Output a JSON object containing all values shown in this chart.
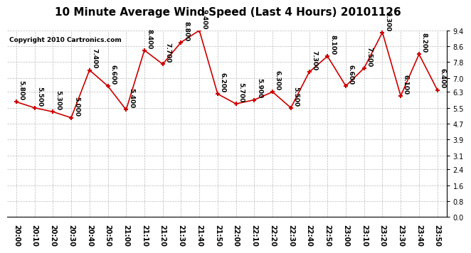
{
  "title": "10 Minute Average Wind Speed (Last 4 Hours) 20101126",
  "copyright": "Copyright 2010 Cartronics.com",
  "x_labels": [
    "20:00",
    "20:10",
    "20:20",
    "20:30",
    "20:40",
    "20:50",
    "21:00",
    "21:10",
    "21:20",
    "21:30",
    "21:40",
    "21:50",
    "22:00",
    "22:10",
    "22:20",
    "22:30",
    "22:40",
    "22:50",
    "23:00",
    "23:10",
    "23:20",
    "23:30",
    "23:40",
    "23:50"
  ],
  "y_values": [
    5.8,
    5.5,
    5.3,
    5.0,
    7.4,
    6.6,
    5.4,
    8.4,
    7.7,
    8.8,
    9.4,
    6.2,
    5.7,
    5.9,
    6.3,
    5.5,
    7.3,
    8.1,
    6.6,
    7.5,
    9.3,
    6.1,
    8.2,
    6.4
  ],
  "y_labels": [
    "5.800",
    "5.500",
    "5.300",
    "5.000",
    "7.400",
    "6.600",
    "5.400",
    "8.400",
    "7.700",
    "8.800",
    "9.400",
    "6.200",
    "5.700",
    "5.900",
    "6.300",
    "5.500",
    "7.300",
    "8.100",
    "6.600",
    "7.500",
    "9.300",
    "6.100",
    "8.200",
    "6.400"
  ],
  "line_color": "#cc0000",
  "marker_color": "#cc0000",
  "bg_color": "#ffffff",
  "grid_color": "#bbbbbb",
  "y_min": 0.0,
  "y_max": 9.4,
  "y_ticks": [
    0.0,
    0.8,
    1.6,
    2.4,
    3.1,
    3.9,
    4.7,
    5.5,
    6.3,
    7.0,
    7.8,
    8.6,
    9.4
  ],
  "title_fontsize": 11,
  "label_fontsize": 6.5,
  "tick_fontsize": 7,
  "copyright_fontsize": 6.5
}
